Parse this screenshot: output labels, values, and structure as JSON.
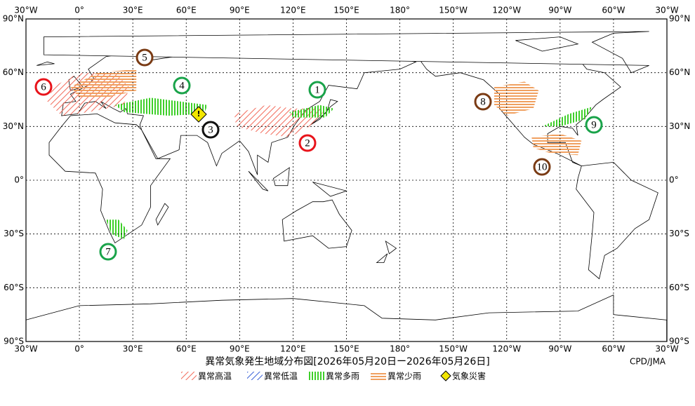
{
  "map": {
    "top_labels": [
      "30°W",
      "0°",
      "30°E",
      "60°E",
      "90°E",
      "120°E",
      "150°E",
      "180°",
      "150°W",
      "120°W",
      "90°W",
      "60°W",
      "30°W"
    ],
    "bottom_labels": [
      "30°W",
      "0°",
      "30°E",
      "60°E",
      "90°E",
      "120°E",
      "150°E",
      "180°",
      "150°W",
      "120°W",
      "90°W",
      "60°W",
      "30°W"
    ],
    "left_labels": [
      "90°N",
      "60°N",
      "30°N",
      "0°",
      "30°S",
      "60°S",
      "90°S"
    ],
    "right_labels": [
      "90°N",
      "60°N",
      "30°N",
      "0°",
      "30°S",
      "60°S",
      "90°S"
    ],
    "markers": [
      {
        "label": "1",
        "color": "#1aa34a"
      },
      {
        "label": "2",
        "color": "#e8141b"
      },
      {
        "label": "3",
        "color": "#111111"
      },
      {
        "label": "4",
        "color": "#1aa34a"
      },
      {
        "label": "5",
        "color": "#7a3b14"
      },
      {
        "label": "6",
        "color": "#e8141b"
      },
      {
        "label": "7",
        "color": "#1aa34a"
      },
      {
        "label": "8",
        "color": "#7a3b14"
      },
      {
        "label": "9",
        "color": "#1aa34a"
      },
      {
        "label": "10",
        "color": "#7a3b14"
      }
    ]
  },
  "title": "異常気象発生地域分布図[2026年05月20日ー2026年05月26日]",
  "credit": "CPD/JMA",
  "legend": [
    "異常高温",
    "異常低温",
    "異常多雨",
    "異常少雨",
    "気象災害"
  ]
}
